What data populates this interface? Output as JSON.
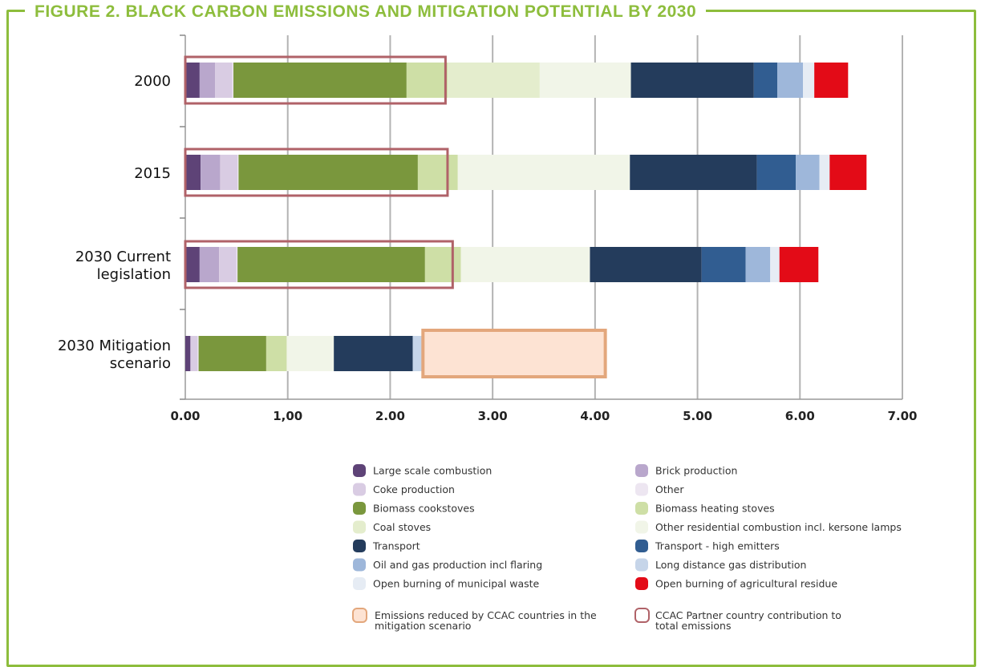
{
  "figure_title": "FIGURE 2. BLACK CARBON EMISSIONS AND MITIGATION POTENTIAL BY 2030",
  "chart_data": {
    "type": "bar",
    "orientation": "horizontal",
    "stacked": true,
    "xlim": [
      0,
      7
    ],
    "x_tick_labels": [
      "0.00",
      "1,00",
      "2.00",
      "3.00",
      "4.00",
      "5.00",
      "6.00",
      "7.00"
    ],
    "grid": true,
    "legend_position": "bottom",
    "categories": [
      "2000",
      "2015",
      "2030 Current legislation",
      "2030 Mitigation scenario"
    ],
    "category_lines": [
      [
        "2000"
      ],
      [
        "2015"
      ],
      [
        "2030 Current",
        "legislation"
      ],
      [
        "2030 Mitigation",
        "scenario"
      ]
    ],
    "series": [
      {
        "name": "Large scale combustion",
        "color": "#5e4377",
        "values": [
          0.14,
          0.15,
          0.14,
          0.05
        ]
      },
      {
        "name": "Brick production",
        "color": "#b9a7cc",
        "values": [
          0.15,
          0.19,
          0.19,
          0.0
        ]
      },
      {
        "name": "Coke production",
        "color": "#d9cce3",
        "values": [
          0.17,
          0.17,
          0.17,
          0.07
        ]
      },
      {
        "name": "Other",
        "color": "#ede6f1",
        "values": [
          0.01,
          0.01,
          0.01,
          0.01
        ]
      },
      {
        "name": "Biomass cookstoves",
        "color": "#7a973d",
        "values": [
          1.69,
          1.75,
          1.83,
          0.66
        ]
      },
      {
        "name": "Biomass heating stoves",
        "color": "#cedfa6",
        "values": [
          0.4,
          0.39,
          0.35,
          0.2
        ]
      },
      {
        "name": "Coal stoves",
        "color": "#e4edcd",
        "values": [
          0.9,
          0.0,
          0.0,
          0.0
        ]
      },
      {
        "name": "Other residential combustion incl. kersone lamps",
        "color": "#f1f5e8",
        "values": [
          0.89,
          1.68,
          1.26,
          0.46
        ]
      },
      {
        "name": "Transport",
        "color": "#243c5c",
        "values": [
          1.2,
          1.24,
          1.09,
          0.77
        ]
      },
      {
        "name": "Transport - high emitters",
        "color": "#315d91",
        "values": [
          0.23,
          0.38,
          0.43,
          0.0
        ]
      },
      {
        "name": "Oil and gas production incl flaring",
        "color": "#9eb7da",
        "values": [
          0.25,
          0.23,
          0.24,
          0.0
        ]
      },
      {
        "name": "Long distance gas distribution",
        "color": "#c6d5e9",
        "values": [
          0.0,
          0.0,
          0.0,
          0.11
        ]
      },
      {
        "name": "Open burning of municipal waste",
        "color": "#e6ecf4",
        "values": [
          0.11,
          0.1,
          0.09,
          0.0
        ]
      },
      {
        "name": "Open burning of agricultural residue",
        "color": "#e30b17",
        "values": [
          0.33,
          0.36,
          0.38,
          0.0
        ]
      }
    ],
    "overlays": [
      {
        "name": "CCAC Partner country contribution to total emissions",
        "style": "outline",
        "color": "#b06268",
        "ranges": [
          [
            0,
            2.54
          ],
          [
            0,
            2.56
          ],
          [
            0,
            2.61
          ],
          null
        ]
      },
      {
        "name": "Emissions reduced by CCAC countries in the mitigation scenario",
        "style": "filled",
        "color": "#e3a77c",
        "fill": "#fde3d3",
        "ranges": [
          null,
          null,
          null,
          [
            2.32,
            4.1
          ]
        ]
      }
    ],
    "legend_left": [
      "Large scale combustion",
      "Coke production",
      "Biomass cookstoves",
      "Coal stoves",
      "Transport",
      "Oil and gas production incl flaring",
      "Open burning of municipal waste"
    ],
    "legend_right": [
      "Brick production",
      "Other",
      "Biomass heating stoves",
      "Other residential combustion incl. kersone lamps",
      "Transport - high emitters",
      "Long distance gas distribution",
      "Open burning of agricultural residue"
    ],
    "overlay_legend": {
      "left_lines": [
        "Emissions reduced by CCAC countries in the",
        "mitigation scenario"
      ],
      "right_lines": [
        "CCAC Partner country contribution to",
        "total emissions"
      ]
    }
  }
}
